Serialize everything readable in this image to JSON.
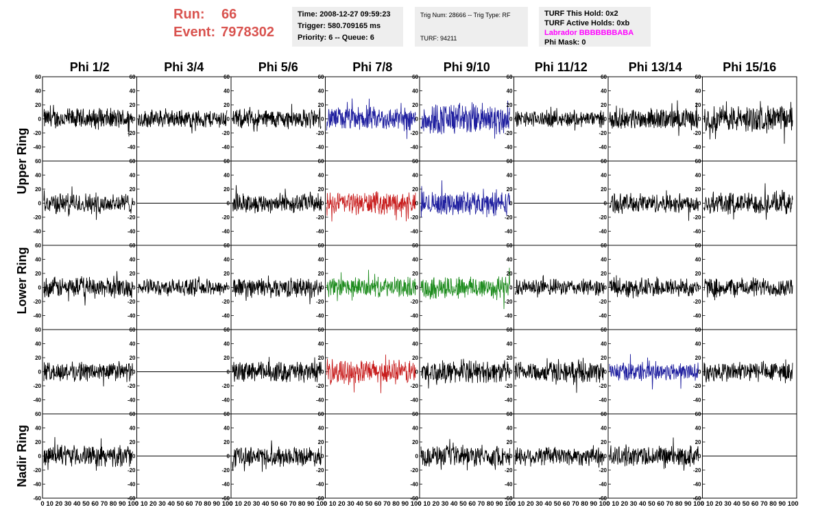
{
  "header": {
    "run_label": "Run:",
    "run_value": "66",
    "event_label": "Event:",
    "event_value": "7978302",
    "time": "Time: 2008-12-27 09:59:23",
    "trigger": "Trigger: 580.709165 ms",
    "priority": "Priority: 6 -- Queue: 6",
    "trig_num": "Trig Num: 28666 -- Trig Type: RF",
    "turf_num": "TURF: 94211",
    "turf_hold": "TURF This Hold: 0x2",
    "turf_active": "TURF Active Holds: 0xb",
    "labrador": "Labrador BBBBBBBABA",
    "phi_mask": "Phi Mask: 0"
  },
  "colors": {
    "header_red": "#d9534f",
    "labrador_magenta": "#ff00ff",
    "blue": "#1f1f9f",
    "red": "#c81e1e",
    "green": "#1e8c1e",
    "black": "#000000"
  },
  "columns": [
    "Phi 1/2",
    "Phi 3/4",
    "Phi 5/6",
    "Phi 7/8",
    "Phi 9/10",
    "Phi 11/12",
    "Phi 13/14",
    "Phi 15/16"
  ],
  "ring_labels": [
    "Upper Ring",
    "Lower Ring",
    "Nadir Ring"
  ],
  "y_ticks": [
    "60",
    "40",
    "20",
    "0",
    "-20",
    "-40",
    "-60"
  ],
  "x_axis_label": "0 10 20 30 40 50 60 70 80 90 100",
  "chart_data": {
    "type": "line",
    "rows": 5,
    "cols": 8,
    "ylim": [
      -60,
      60
    ],
    "xlim": [
      0,
      100
    ],
    "grid": false,
    "trace_colors": [
      [
        "black",
        "black",
        "black",
        "blue",
        "blue",
        "black",
        "black",
        "black"
      ],
      [
        "black",
        "flat",
        "black",
        "red",
        "blue",
        "flat",
        "black",
        "black"
      ],
      [
        "black",
        "black",
        "black",
        "green",
        "green",
        "black",
        "black",
        "black"
      ],
      [
        "black",
        "flat",
        "black",
        "red",
        "black",
        "black",
        "blue",
        "black"
      ],
      [
        "black",
        "flat",
        "black",
        "none",
        "black",
        "black",
        "black",
        "flat"
      ]
    ],
    "trace_amplitude": [
      [
        14,
        12,
        13,
        16,
        22,
        11,
        14,
        18
      ],
      [
        14,
        0,
        13,
        15,
        16,
        0,
        13,
        15
      ],
      [
        14,
        11,
        13,
        13,
        16,
        11,
        13,
        13
      ],
      [
        13,
        0,
        14,
        16,
        15,
        14,
        13,
        14
      ],
      [
        14,
        0,
        13,
        0,
        14,
        13,
        14,
        0
      ]
    ]
  }
}
